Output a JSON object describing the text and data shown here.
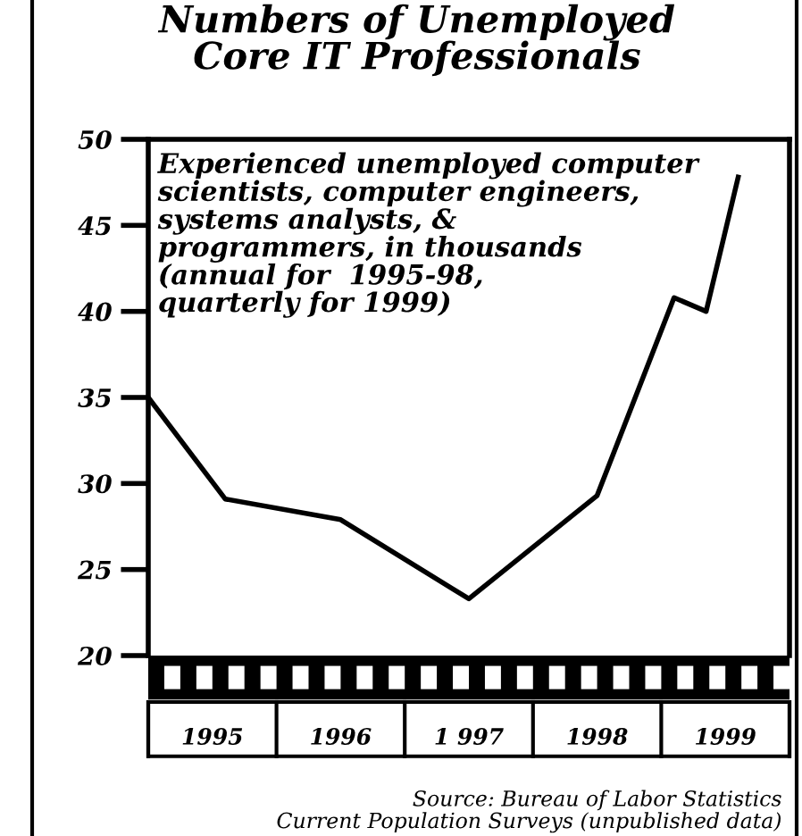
{
  "chart_data": {
    "type": "line",
    "title": "Numbers of Unemployed\nCore IT Professionals",
    "x": [
      1995.0,
      1995.6,
      1996.5,
      1997.5,
      1998.5,
      1999.1,
      1999.35,
      1999.6
    ],
    "series": [
      {
        "color": "#000000",
        "values": [
          35,
          29.1,
          27.9,
          23.3,
          29.3,
          40.8,
          40.0,
          47.8
        ]
      }
    ],
    "xlim": [
      1995,
      2000
    ],
    "xticks": [
      {
        "value": 1995.5,
        "label": "1995"
      },
      {
        "value": 1996.5,
        "label": "1996"
      },
      {
        "value": 1997.5,
        "label": "1 997"
      },
      {
        "value": 1998.5,
        "label": "1998"
      },
      {
        "value": 1999.5,
        "label": "1999"
      }
    ],
    "ylim": [
      20,
      50
    ],
    "yticks": [
      20,
      25,
      30,
      35,
      40,
      45,
      50
    ],
    "grid": false,
    "legend": false,
    "marker": "none",
    "line_style": "solid",
    "annotations": [
      "Experienced unemployed computer\nscientists, computer engineers,\nsystems analysts, &\nprogrammers, in thousands\n(annual for  1995-98,\nquarterly for 1999)",
      "Source: Bureau of Labor Statistics\nCurrent Population Surveys (unpublished data)"
    ]
  }
}
